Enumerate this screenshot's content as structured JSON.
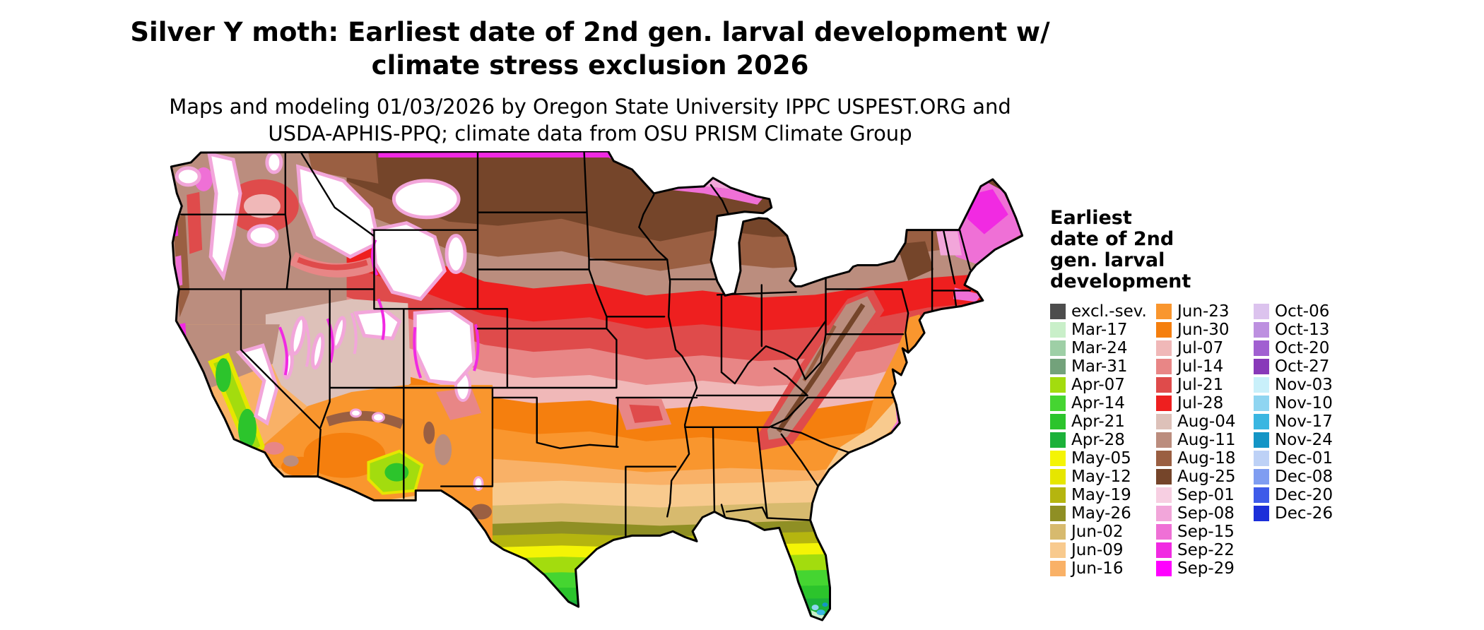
{
  "title": {
    "line1": "Silver Y moth: Earliest date of 2nd gen. larval development w/",
    "line2": "climate stress exclusion 2026"
  },
  "subtitle": {
    "line1": "Maps and modeling 01/03/2026 by Oregon State University IPPC USPEST.ORG and",
    "line2": "USDA-APHIS-PPQ; climate data from OSU PRISM Climate Group"
  },
  "legend": {
    "title_lines": [
      "Earliest",
      "date of 2nd",
      "gen. larval",
      "development"
    ],
    "columns": [
      [
        {
          "label": "excl.-sev.",
          "color": "#4d4d4d"
        },
        {
          "label": "Mar-17",
          "color": "#c9efc9"
        },
        {
          "label": "Mar-24",
          "color": "#9ecfa6"
        },
        {
          "label": "Mar-31",
          "color": "#73a27b"
        },
        {
          "label": "Apr-07",
          "color": "#a3dc0e"
        },
        {
          "label": "Apr-14",
          "color": "#45d531"
        },
        {
          "label": "Apr-21",
          "color": "#2cc42c"
        },
        {
          "label": "Apr-28",
          "color": "#1cb13a"
        },
        {
          "label": "May-05",
          "color": "#f4f405"
        },
        {
          "label": "May-12",
          "color": "#e6e600"
        },
        {
          "label": "May-19",
          "color": "#b5b50f"
        },
        {
          "label": "May-26",
          "color": "#8f8f24"
        },
        {
          "label": "Jun-02",
          "color": "#d7ba6e"
        },
        {
          "label": "Jun-09",
          "color": "#f8ca8e"
        },
        {
          "label": "Jun-16",
          "color": "#f9b167"
        }
      ],
      [
        {
          "label": "Jun-23",
          "color": "#f9962e"
        },
        {
          "label": "Jun-30",
          "color": "#f57f0e"
        },
        {
          "label": "Jul-07",
          "color": "#f0b8b8"
        },
        {
          "label": "Jul-14",
          "color": "#e88686"
        },
        {
          "label": "Jul-21",
          "color": "#df4b4b"
        },
        {
          "label": "Jul-28",
          "color": "#ee1f1f"
        },
        {
          "label": "Aug-04",
          "color": "#ddc1b9"
        },
        {
          "label": "Aug-11",
          "color": "#bb8d7e"
        },
        {
          "label": "Aug-18",
          "color": "#9a5f42"
        },
        {
          "label": "Aug-25",
          "color": "#75452a"
        },
        {
          "label": "Sep-01",
          "color": "#f7cfe2"
        },
        {
          "label": "Sep-08",
          "color": "#f2a6da"
        },
        {
          "label": "Sep-15",
          "color": "#ef70d6"
        },
        {
          "label": "Sep-22",
          "color": "#f12ae2"
        },
        {
          "label": "Sep-29",
          "color": "#ff00ff"
        }
      ],
      [
        {
          "label": "Oct-06",
          "color": "#dcc3ee"
        },
        {
          "label": "Oct-13",
          "color": "#bd90e0"
        },
        {
          "label": "Oct-20",
          "color": "#a160d1"
        },
        {
          "label": "Oct-27",
          "color": "#8839b9"
        },
        {
          "label": "Nov-03",
          "color": "#c9f0fa"
        },
        {
          "label": "Nov-10",
          "color": "#8fd5f1"
        },
        {
          "label": "Nov-17",
          "color": "#3ab6e1"
        },
        {
          "label": "Nov-24",
          "color": "#1495c6"
        },
        {
          "label": "Dec-01",
          "color": "#bdd1f6"
        },
        {
          "label": "Dec-08",
          "color": "#7f9df1"
        },
        {
          "label": "Dec-20",
          "color": "#3e5be9"
        },
        {
          "label": "Dec-26",
          "color": "#1c2fd9"
        }
      ]
    ]
  }
}
